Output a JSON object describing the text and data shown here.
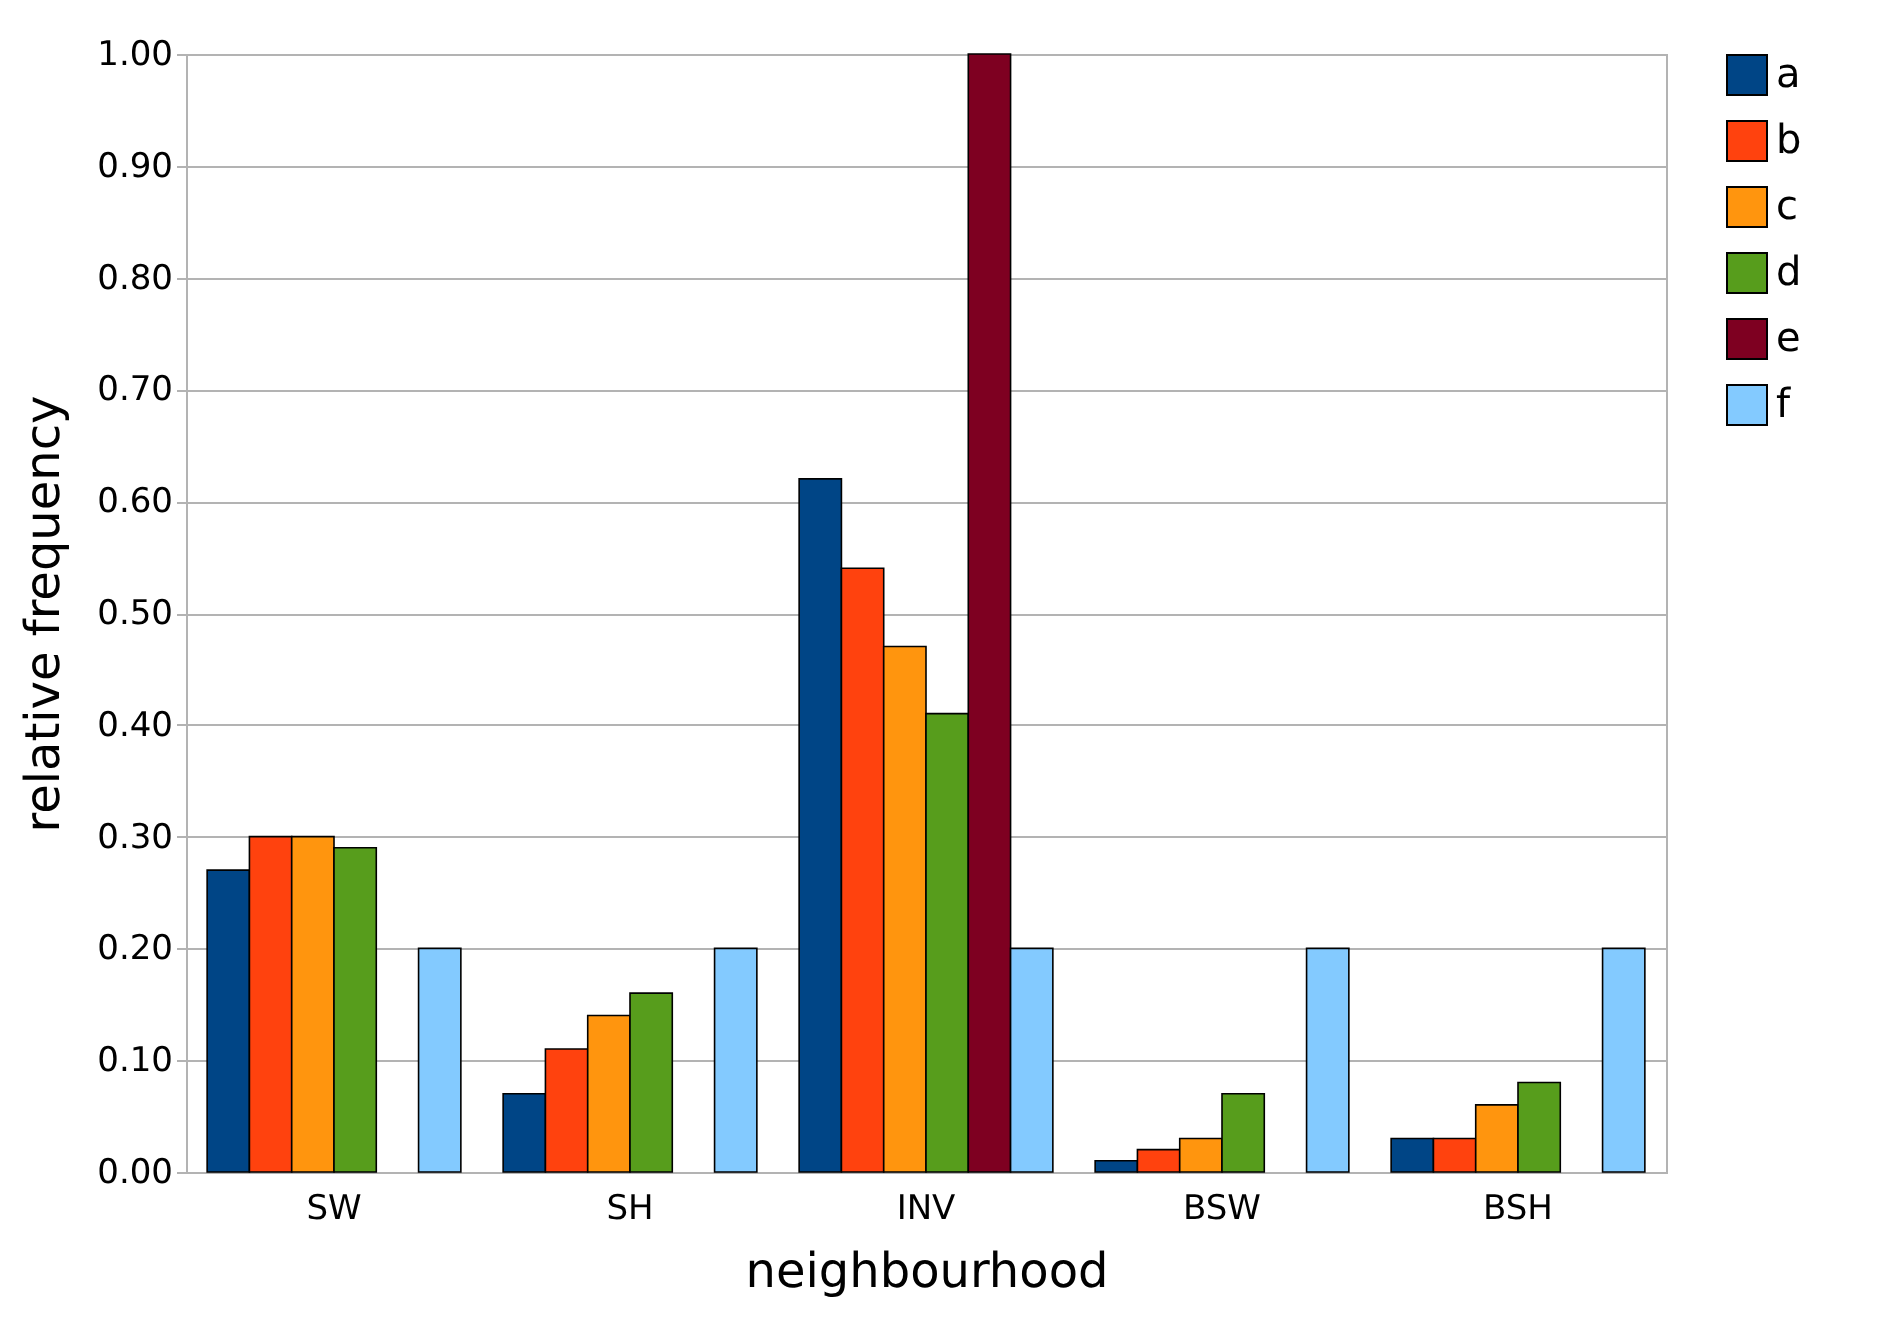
{
  "chart_data": {
    "type": "bar",
    "xlabel": "neighbourhood",
    "ylabel": "relative frequency",
    "categories": [
      "SW",
      "SH",
      "INV",
      "BSW",
      "BSH"
    ],
    "series": [
      {
        "name": "a",
        "color": "#004586",
        "values": [
          0.27,
          0.07,
          0.62,
          0.01,
          0.03
        ]
      },
      {
        "name": "b",
        "color": "#ff420e",
        "values": [
          0.3,
          0.11,
          0.54,
          0.02,
          0.03
        ]
      },
      {
        "name": "c",
        "color": "#ff950e",
        "values": [
          0.3,
          0.14,
          0.47,
          0.03,
          0.06
        ]
      },
      {
        "name": "d",
        "color": "#579d1c",
        "values": [
          0.29,
          0.16,
          0.41,
          0.07,
          0.08
        ]
      },
      {
        "name": "e",
        "color": "#7e0021",
        "values": [
          null,
          null,
          1.0,
          null,
          null
        ]
      },
      {
        "name": "f",
        "color": "#83caff",
        "values": [
          0.2,
          0.2,
          0.2,
          0.2,
          0.2
        ]
      }
    ],
    "ylim": [
      0,
      1
    ],
    "yticks": [
      {
        "value": 0,
        "label": "0.00"
      },
      {
        "value": 0.1,
        "label": "0.10"
      },
      {
        "value": 0.2,
        "label": "0.20"
      },
      {
        "value": 0.3,
        "label": "0.30"
      },
      {
        "value": 0.4,
        "label": "0.40"
      },
      {
        "value": 0.5,
        "label": "0.50"
      },
      {
        "value": 0.6,
        "label": "0.60"
      },
      {
        "value": 0.7,
        "label": "0.70"
      },
      {
        "value": 0.8,
        "label": "0.80"
      },
      {
        "value": 0.9,
        "label": "0.90"
      },
      {
        "value": 1,
        "label": "1.00"
      }
    ],
    "grid": "y",
    "legend": "right"
  }
}
